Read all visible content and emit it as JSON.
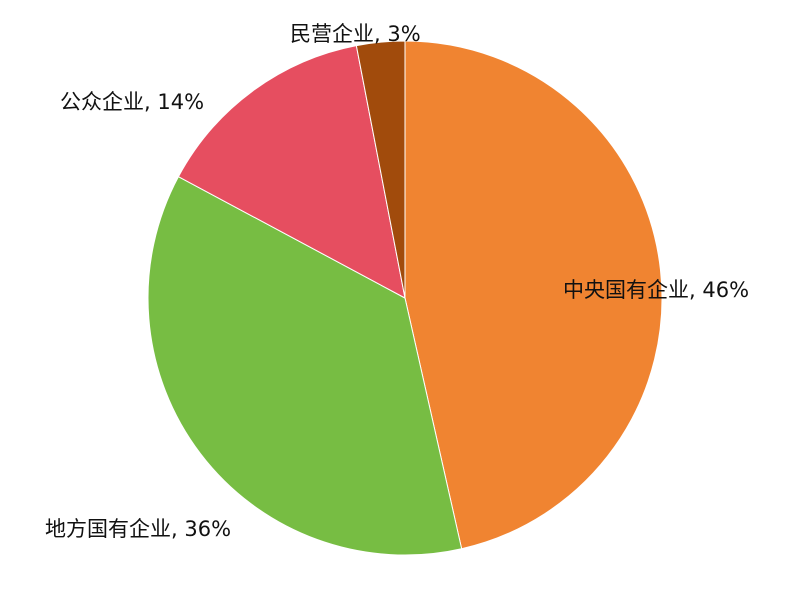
{
  "chart_data": {
    "type": "pie",
    "title": "",
    "start": "top",
    "direction": "clockwise",
    "legend": "none",
    "slices": [
      {
        "label": "中央国有企业, 46%",
        "value": 46,
        "color": "#f08431"
      },
      {
        "label": "地方国有企业, 36%",
        "value": 36,
        "color": "#77bd43"
      },
      {
        "label": "公众企业, 14%",
        "value": 14,
        "color": "#e64e60"
      },
      {
        "label": "民营企业, 3%",
        "value": 3,
        "color": "#a14b0c"
      }
    ]
  }
}
